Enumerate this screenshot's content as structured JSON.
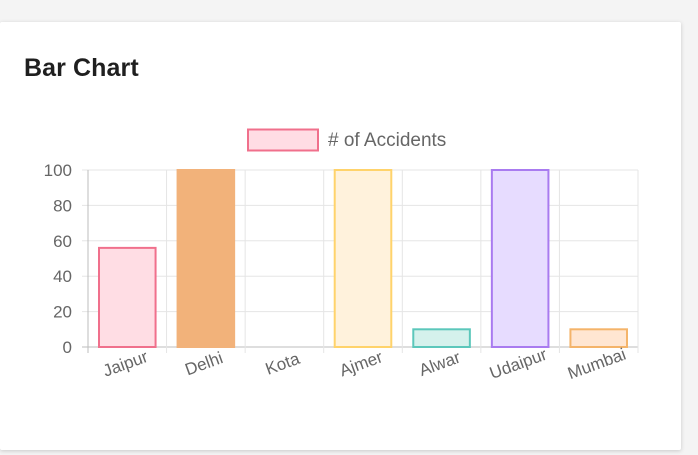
{
  "card": {
    "title": "Bar Chart"
  },
  "chart_data": {
    "type": "bar",
    "categories": [
      "Jaipur",
      "Delhi",
      "Kota",
      "Ajmer",
      "Alwar",
      "Udaipur",
      "Mumbai"
    ],
    "series": [
      {
        "name": "# of Accidents",
        "values": [
          56,
          100,
          0,
          100,
          10,
          100,
          10
        ]
      }
    ],
    "ylim": [
      0,
      100
    ],
    "yticks": [
      0,
      20,
      40,
      60,
      80,
      100
    ],
    "grid": true,
    "legend_position": "top",
    "legend_box_fill": "#ffdde4",
    "legend_box_stroke": "#f0708c",
    "bar_fills": [
      "#ffdde4",
      "#f2b27a",
      "#e6e6e6",
      "#fff2dc",
      "#d5f1ec",
      "#e7dcff",
      "#ffe6d2"
    ],
    "bar_strokes": [
      "#f0708c",
      "#f2b27a",
      "#bdbdbd",
      "#ffd36b",
      "#5cc7bb",
      "#a97bf0",
      "#f4b46a"
    ]
  }
}
